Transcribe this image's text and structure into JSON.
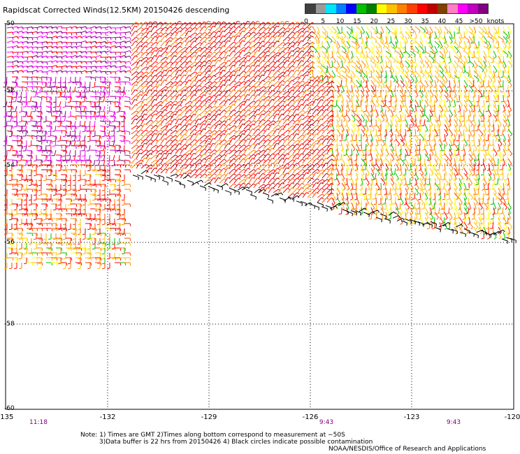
{
  "title": "Rapidscat Corrected Winds(12.5KM) 20150426 descending",
  "x_ticks": [
    "-135",
    "-132",
    "-129",
    "-126",
    "-123",
    "-120"
  ],
  "y_ticks": [
    "-50",
    "-52",
    "-54",
    "-56",
    "-58",
    "-60"
  ],
  "pass_times": [
    "11:18",
    "9:43",
    "9:43"
  ],
  "colorbar": {
    "labels": [
      "0",
      "5",
      "10",
      "15",
      "20",
      "25",
      "30",
      "35",
      "40",
      "45",
      ">50"
    ],
    "unit": "knots",
    "colors": [
      "#404040",
      "#9a9a9a",
      "#00e5ff",
      "#0080ff",
      "#0000ff",
      "#00c000",
      "#008000",
      "#ffff00",
      "#ffc000",
      "#ff8000",
      "#ff4000",
      "#ff0000",
      "#c00000",
      "#804000",
      "#ff80c0",
      "#ff00ff",
      "#c000c0",
      "#800080"
    ]
  },
  "notes": {
    "line1": "Note: 1) Times are GMT 2)Times along bottom correspond to measurement at −50S",
    "line2": "3)Data buffer is 22 hrs from 20150426 4) Black circles indicate possible contamination"
  },
  "credit": "NOAA/NESDIS/Office of Research and Applications",
  "map_data": {
    "lon_range": [
      -135,
      -120
    ],
    "lat_range": [
      -50,
      -60
    ],
    "grid": "dotted",
    "wind_units": "knots",
    "speed_regions": [
      {
        "region": "west of -132, -50 to -53",
        "speed_range": "40-50",
        "colors": [
          "#ff00ff",
          "#c000c0",
          "#800080"
        ]
      },
      {
        "region": "west of -132, -54 to -55.5",
        "speed_range": "25-35",
        "colors": [
          "#ff8000",
          "#ff4000",
          "#ff0000"
        ]
      },
      {
        "region": "center -132 to -126, -50 to -54",
        "speed_range": "30-35",
        "colors": [
          "#ff0000",
          "#ff4000"
        ]
      },
      {
        "region": "east of -126, -50 to -52",
        "speed_range": "20-25",
        "colors": [
          "#ffff00",
          "#ffc000"
        ]
      },
      {
        "region": "east of -126, -52 to -55.5",
        "speed_range": "25-30",
        "colors": [
          "#ff8000",
          "#ffc000",
          "#ff4000"
        ]
      },
      {
        "region": "southern swath edge",
        "flag": "possible contamination",
        "colors": [
          "#000000"
        ]
      }
    ]
  }
}
